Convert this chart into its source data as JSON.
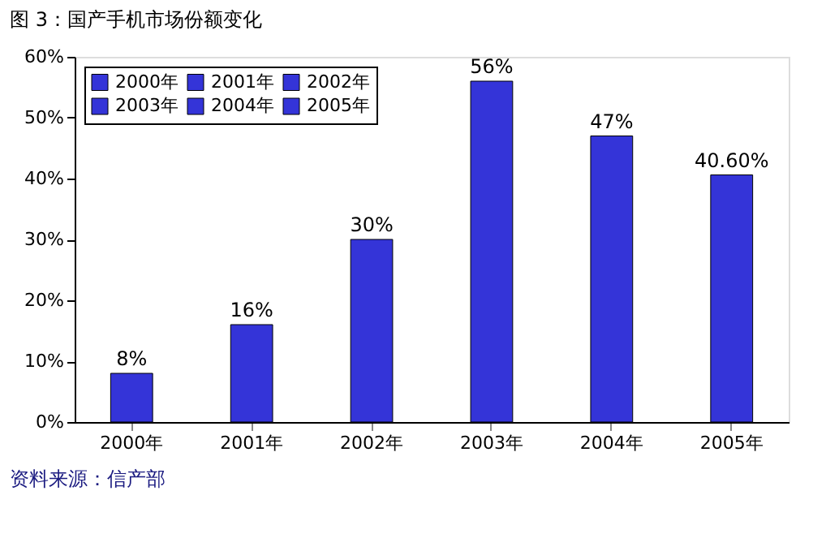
{
  "chart_data": {
    "type": "bar",
    "title": "图 3：国产手机市场份额变化",
    "categories": [
      "2000年",
      "2001年",
      "2002年",
      "2003年",
      "2004年",
      "2005年"
    ],
    "series": [
      {
        "name": "2000年",
        "color": "#3434d8",
        "values": [
          8,
          null,
          null,
          null,
          null,
          null
        ],
        "value_labels": [
          "8%",
          null,
          null,
          null,
          null,
          null
        ]
      },
      {
        "name": "2001年",
        "color": "#3434d8",
        "values": [
          null,
          16,
          null,
          null,
          null,
          null
        ],
        "value_labels": [
          null,
          "16%",
          null,
          null,
          null,
          null
        ]
      },
      {
        "name": "2002年",
        "color": "#3434d8",
        "values": [
          null,
          null,
          30,
          null,
          null,
          null
        ],
        "value_labels": [
          null,
          null,
          "30%",
          null,
          null,
          null
        ]
      },
      {
        "name": "2003年",
        "color": "#3434d8",
        "values": [
          null,
          null,
          null,
          56,
          null,
          null
        ],
        "value_labels": [
          null,
          null,
          null,
          "56%",
          null,
          null
        ]
      },
      {
        "name": "2004年",
        "color": "#3434d8",
        "values": [
          null,
          null,
          null,
          null,
          47,
          null
        ],
        "value_labels": [
          null,
          null,
          null,
          null,
          "47%",
          null
        ]
      },
      {
        "name": "2005年",
        "color": "#3434d8",
        "values": [
          null,
          null,
          null,
          null,
          null,
          40.6
        ],
        "value_labels": [
          null,
          null,
          null,
          null,
          null,
          "40.60%"
        ]
      }
    ],
    "ylim": [
      0,
      60
    ],
    "yticks": [
      {
        "value": 0,
        "label": "0%"
      },
      {
        "value": 10,
        "label": "10%"
      },
      {
        "value": 20,
        "label": "20%"
      },
      {
        "value": 30,
        "label": "30%"
      },
      {
        "value": 40,
        "label": "40%"
      },
      {
        "value": 50,
        "label": "50%"
      },
      {
        "value": 60,
        "label": "60%"
      }
    ],
    "grid": false,
    "legend": "top left",
    "annotations": [
      "资料来源：信产部"
    ]
  }
}
